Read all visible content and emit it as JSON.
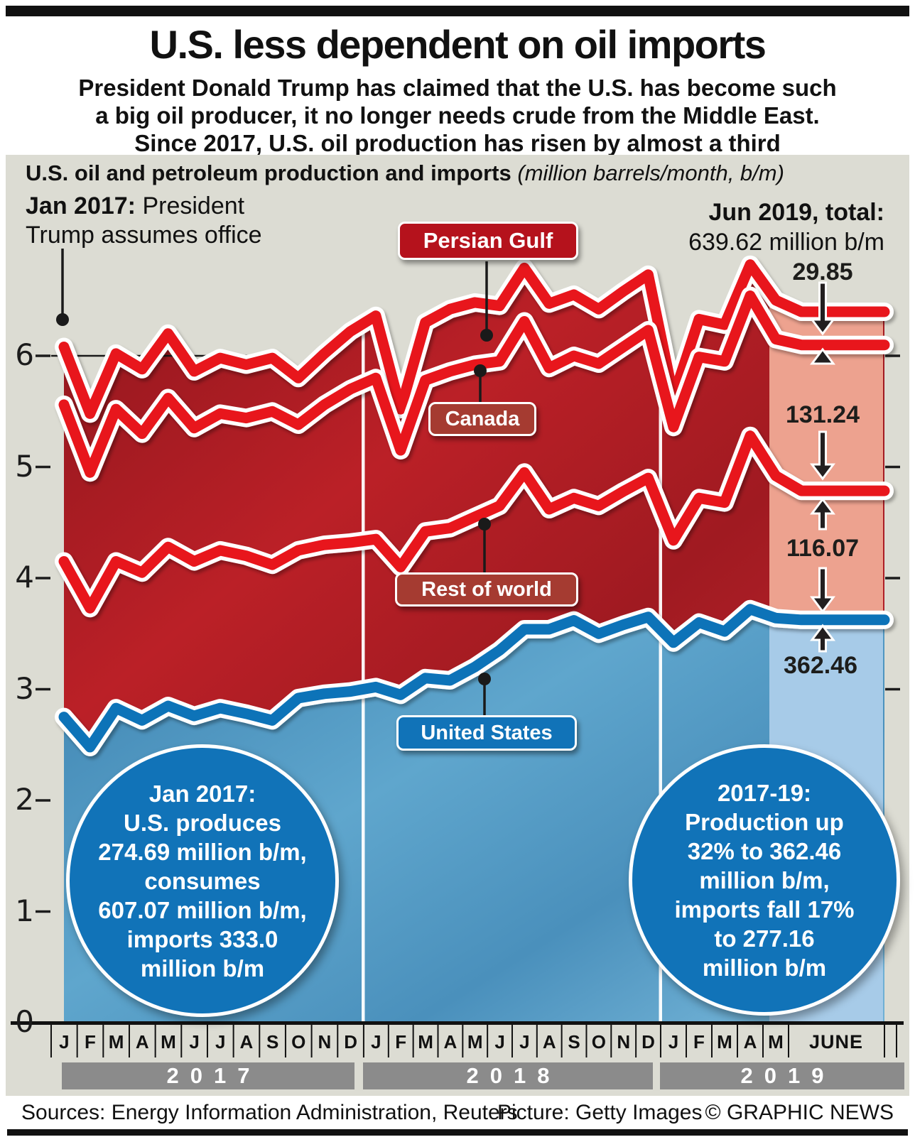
{
  "header": {
    "title": "U.S. less dependent on oil imports",
    "subtitle_line1": "President Donald Trump has claimed that the U.S. has become such",
    "subtitle_line2": "a big oil producer, it no longer needs crude from the Middle East.",
    "subtitle_line3": "Since 2017, U.S. oil production has risen by almost a third"
  },
  "panel": {
    "chart_title": "U.S. oil and petroleum production and imports",
    "chart_unit": "(million barrels/month, b/m)"
  },
  "annotations": {
    "jan2017_bold": "Jan 2017:",
    "jan2017_rest": "President",
    "jan2017_line2": "Trump assumes office",
    "jun2019_bold": "Jun 2019, total:",
    "jun2019_value": "639.62 million b/m"
  },
  "badges": {
    "persian_gulf": "Persian Gulf",
    "canada": "Canada",
    "rest_of_world": "Rest of world",
    "united_states": "United States"
  },
  "band_values": {
    "persian_gulf": "29.85",
    "canada": "131.24",
    "rest_of_world": "116.07",
    "us_production": "362.46"
  },
  "circles": {
    "left": {
      "text": "Jan 2017:\nU.S. produces\n274.69 million b/m,\nconsumes\n607.07 million b/m,\nimports 333.0\nmillion b/m"
    },
    "right": {
      "text": "2017-19:\nProduction up\n32% to 362.46\nmillion b/m,\nimports fall 17%\nto 277.16\nmillion b/m"
    }
  },
  "footer": {
    "sources": "Sources: Energy Information Administration, Reuters",
    "picture": "Picture: Getty Images",
    "credit": "© GRAPHIC NEWS"
  },
  "colors": {
    "panel_bg": "#dcdcd3",
    "line_red": "#e8131f",
    "line_blue": "#1173b8",
    "area_red_dark": "#8f161d",
    "area_red": "#bb2027",
    "area_blue": "#4a90bc",
    "highlight_salmon": "#eda28f",
    "highlight_blue": "#a7cbe8",
    "year_bar": "#8b8b8b",
    "badge_crimson": "#b5121c",
    "badge_dark_red": "#a53b31",
    "badge_blue": "#1173b8"
  },
  "chart_data": {
    "type": "area",
    "title": "U.S. oil and petroleum production and imports",
    "unit_note": "(million barrels/month, b/m)",
    "description": "Stacked bands: U.S. production (bottom, blue), then imports from Rest of world, Canada and Persian Gulf. Values in hundreds of million barrels per month, Jan 2017 - Jun 2019.",
    "y_axis": {
      "ticks": [
        0,
        1,
        2,
        3,
        4,
        5,
        6
      ],
      "range": [
        0,
        6.9
      ],
      "unit": "hundred million barrels/month"
    },
    "x_axis": {
      "groups": [
        {
          "year": "2017",
          "months": [
            "J",
            "F",
            "M",
            "A",
            "M",
            "J",
            "J",
            "A",
            "S",
            "O",
            "N",
            "D"
          ]
        },
        {
          "year": "2018",
          "months": [
            "J",
            "F",
            "M",
            "A",
            "M",
            "J",
            "J",
            "A",
            "S",
            "O",
            "N",
            "D"
          ]
        },
        {
          "year": "2019",
          "months": [
            "J",
            "F",
            "M",
            "A",
            "M"
          ],
          "june_label": "JUNE"
        }
      ]
    },
    "series": [
      {
        "name": "Total production + imports (Persian Gulf top line)",
        "color": "#e8131f",
        "values": [
          6.08,
          5.48,
          6.02,
          5.88,
          6.2,
          5.86,
          5.98,
          5.92,
          5.98,
          5.8,
          6.02,
          6.22,
          6.36,
          5.52,
          6.3,
          6.42,
          6.48,
          6.45,
          6.79,
          6.47,
          6.55,
          6.42,
          6.58,
          6.73,
          5.63,
          6.33,
          6.28,
          6.82,
          6.5,
          6.3962
        ]
      },
      {
        "name": "U.S. + Rest of world + Canada (Canada top line)",
        "color": "#e8131f",
        "values": [
          5.56,
          4.95,
          5.52,
          5.3,
          5.62,
          5.35,
          5.48,
          5.44,
          5.5,
          5.38,
          5.56,
          5.7,
          5.8,
          5.15,
          5.78,
          5.86,
          5.92,
          5.95,
          6.31,
          5.89,
          6.0,
          5.93,
          6.08,
          6.23,
          5.36,
          5.99,
          5.95,
          6.54,
          6.15,
          6.0977
        ]
      },
      {
        "name": "U.S. + Rest of world (Rest of world top line)",
        "color": "#e8131f",
        "values": [
          4.15,
          3.73,
          4.15,
          4.05,
          4.28,
          4.15,
          4.25,
          4.2,
          4.12,
          4.25,
          4.3,
          4.32,
          4.35,
          4.1,
          4.42,
          4.45,
          4.55,
          4.65,
          4.95,
          4.62,
          4.72,
          4.65,
          4.78,
          4.9,
          4.34,
          4.72,
          4.68,
          5.28,
          4.92,
          4.7853
        ]
      },
      {
        "name": "United States production",
        "color": "#1173b8",
        "values": [
          2.75,
          2.48,
          2.83,
          2.72,
          2.85,
          2.76,
          2.83,
          2.78,
          2.72,
          2.92,
          2.96,
          2.98,
          3.02,
          2.95,
          3.1,
          3.08,
          3.2,
          3.35,
          3.54,
          3.54,
          3.62,
          3.5,
          3.58,
          3.65,
          3.42,
          3.6,
          3.52,
          3.72,
          3.64,
          3.6246
        ]
      }
    ],
    "june_2019_bands": {
      "persian_gulf": 29.85,
      "canada": 131.24,
      "rest_of_world": 116.07,
      "us_production": 362.46,
      "total": 639.62
    },
    "legend_position": "labels-on-chart",
    "grid": "partial (tick stubs, line at 6)"
  }
}
